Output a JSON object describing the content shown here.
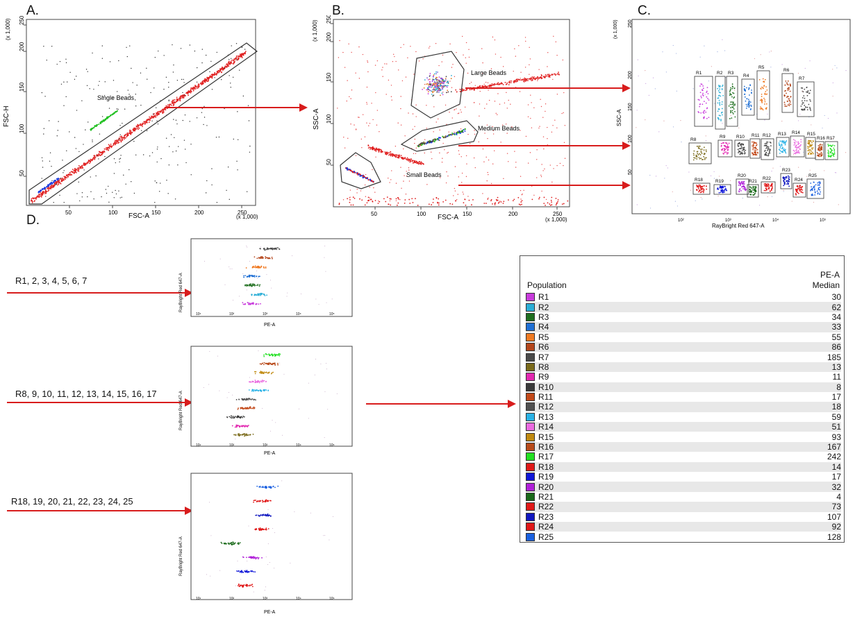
{
  "panels": {
    "a": {
      "letter": "A.",
      "xlabel": "FSC-A",
      "ylabel": "FSC-H",
      "xscale": "(x 1,000)",
      "yscale": "(x 1,000)",
      "xticks": [
        "50",
        "100",
        "150",
        "200",
        "250"
      ],
      "yticks": [
        "50",
        "100",
        "150",
        "200",
        "250"
      ],
      "gate_label": "Single Beads"
    },
    "b": {
      "letter": "B.",
      "xlabel": "FSC-A",
      "ylabel": "SSC-A",
      "xscale": "(x 1,000)",
      "yscale": "(x 1,000)",
      "xticks": [
        "50",
        "100",
        "150",
        "200",
        "250"
      ],
      "yticks": [
        "50",
        "100",
        "150",
        "200",
        "250"
      ],
      "gates": [
        "Large Beads",
        "Medium Beads",
        "Small Beads"
      ]
    },
    "c": {
      "letter": "C.",
      "xlabel": "RayBright Red 647-A",
      "ylabel": "SSC-A",
      "yscale": "(x 1,000)",
      "yticks": [
        "50",
        "100",
        "150",
        "200",
        "250"
      ],
      "xticks": [
        "10²",
        "10³",
        "10⁴",
        "10⁵"
      ],
      "regions": [
        "R1",
        "R2",
        "R3",
        "R4",
        "R5",
        "R6",
        "R7",
        "R8",
        "R9",
        "R10",
        "R11",
        "R12",
        "R13",
        "R14",
        "R15",
        "R16",
        "R17",
        "R18",
        "R19",
        "R20",
        "R21",
        "R22",
        "R23",
        "R24",
        "R25"
      ]
    },
    "d": {
      "letter": "D.",
      "xlabel": "PE-A",
      "ylabel": "RayBright Red 647-A",
      "xticks": [
        "10²",
        "10³",
        "10⁴",
        "10⁵"
      ],
      "groups": [
        "R1, 2, 3, 4, 5, 6, 7",
        "R8, 9, 10, 11, 12, 13, 14, 15, 16, 17",
        "R18, 19, 20, 21, 22, 23, 24, 25"
      ]
    }
  },
  "table": {
    "col1": "Population",
    "col2_line1": "PE-A",
    "col2_line2": "Median",
    "rows": [
      {
        "name": "R1",
        "value": "30",
        "color": "#c83cdc"
      },
      {
        "name": "R2",
        "value": "62",
        "color": "#2aaed6"
      },
      {
        "name": "R3",
        "value": "34",
        "color": "#1e6e1e"
      },
      {
        "name": "R4",
        "value": "33",
        "color": "#1f6fd4"
      },
      {
        "name": "R5",
        "value": "55",
        "color": "#f07a22"
      },
      {
        "name": "R6",
        "value": "86",
        "color": "#b4461c"
      },
      {
        "name": "R7",
        "value": "185",
        "color": "#4a4a4a"
      },
      {
        "name": "R8",
        "value": "13",
        "color": "#7a6a1a"
      },
      {
        "name": "R9",
        "value": "11",
        "color": "#e228b0"
      },
      {
        "name": "R10",
        "value": "8",
        "color": "#3a3a3a"
      },
      {
        "name": "R11",
        "value": "17",
        "color": "#c24818"
      },
      {
        "name": "R12",
        "value": "18",
        "color": "#505050"
      },
      {
        "name": "R13",
        "value": "59",
        "color": "#2ab2e6"
      },
      {
        "name": "R14",
        "value": "51",
        "color": "#ea6ae0"
      },
      {
        "name": "R15",
        "value": "93",
        "color": "#c08a10"
      },
      {
        "name": "R16",
        "value": "167",
        "color": "#b84a1a"
      },
      {
        "name": "R17",
        "value": "242",
        "color": "#22e022"
      },
      {
        "name": "R18",
        "value": "14",
        "color": "#e01818"
      },
      {
        "name": "R19",
        "value": "17",
        "color": "#1018d8"
      },
      {
        "name": "R20",
        "value": "32",
        "color": "#b020d8"
      },
      {
        "name": "R21",
        "value": "4",
        "color": "#1a6a1a"
      },
      {
        "name": "R22",
        "value": "73",
        "color": "#e01818"
      },
      {
        "name": "R23",
        "value": "107",
        "color": "#1018c0"
      },
      {
        "name": "R24",
        "value": "92",
        "color": "#e01818"
      },
      {
        "name": "R25",
        "value": "128",
        "color": "#1a60e0"
      }
    ]
  },
  "chart_data": {
    "type": "table",
    "title": "",
    "columns": [
      "Population",
      "PE-A Median"
    ],
    "categories": [
      "R1",
      "R2",
      "R3",
      "R4",
      "R5",
      "R6",
      "R7",
      "R8",
      "R9",
      "R10",
      "R11",
      "R12",
      "R13",
      "R14",
      "R15",
      "R16",
      "R17",
      "R18",
      "R19",
      "R20",
      "R21",
      "R22",
      "R23",
      "R24",
      "R25"
    ],
    "values": [
      30,
      62,
      34,
      33,
      55,
      86,
      185,
      13,
      11,
      8,
      17,
      18,
      59,
      51,
      93,
      167,
      242,
      14,
      17,
      32,
      4,
      73,
      107,
      92,
      128
    ]
  }
}
